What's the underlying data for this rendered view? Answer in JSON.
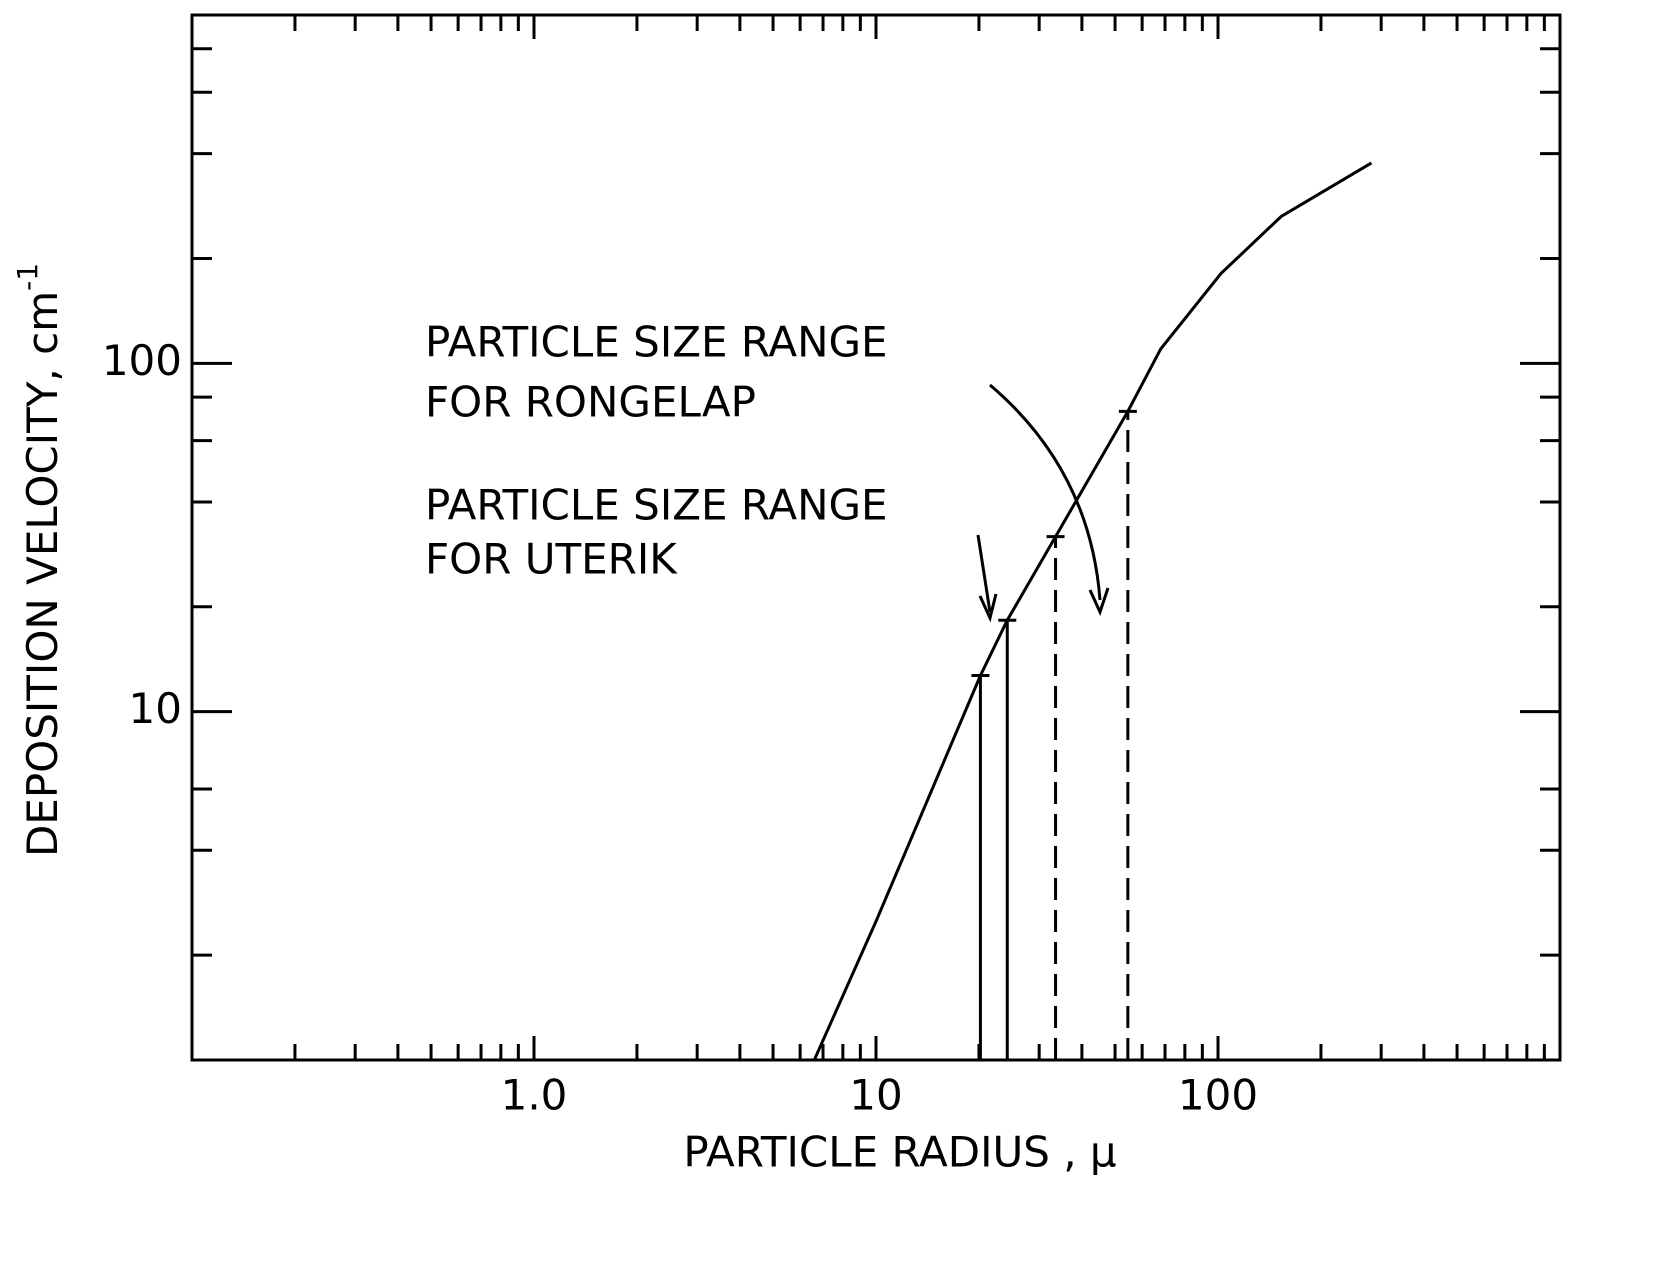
{
  "chart_data": {
    "type": "line",
    "xlabel": "PARTICLE RADIUS , μ",
    "ylabel": "DEPOSITION VELOCITY, cm",
    "ylabel_sup": "-1",
    "xscale": "log",
    "yscale": "log",
    "xlim": [
      0.1,
      1000
    ],
    "ylim": [
      1,
      1000
    ],
    "xticks": [
      {
        "value": 1,
        "label": "1.0"
      },
      10,
      100
    ],
    "yticks": [
      10,
      100
    ],
    "xminorticks": [
      0.2,
      0.3,
      0.4,
      0.5,
      0.6,
      0.7,
      0.8,
      0.9,
      2,
      3,
      4,
      5,
      6,
      7,
      8,
      9,
      20,
      30,
      40,
      50,
      60,
      70,
      80,
      90,
      200,
      300,
      400,
      500,
      600,
      700,
      800,
      900
    ],
    "yminorticks": [
      2,
      4,
      6,
      20,
      40,
      60,
      80,
      200,
      400,
      600,
      800
    ],
    "series": [
      {
        "color": "#000000",
        "x": [
          6.6,
          10,
          20.2,
          24.2,
          33.5,
          54.5,
          68,
          102,
          153,
          281
        ],
        "values": [
          1.0,
          2.5,
          12.7,
          18.3,
          31.8,
          72.8,
          110,
          181,
          264,
          376
        ]
      }
    ],
    "markers": [
      {
        "x": 20.2,
        "y": 12.7,
        "style": "solid"
      },
      {
        "x": 24.2,
        "y": 18.3,
        "style": "solid"
      },
      {
        "x": 33.5,
        "y": 31.8,
        "style": "dashed"
      },
      {
        "x": 54.5,
        "y": 72.8,
        "style": "dashed"
      }
    ],
    "annotations": [
      [
        "PARTICLE SIZE RANGE",
        "FOR RONGELAP"
      ],
      [
        "PARTICLE SIZE RANGE",
        "FOR UTERIK"
      ]
    ]
  }
}
